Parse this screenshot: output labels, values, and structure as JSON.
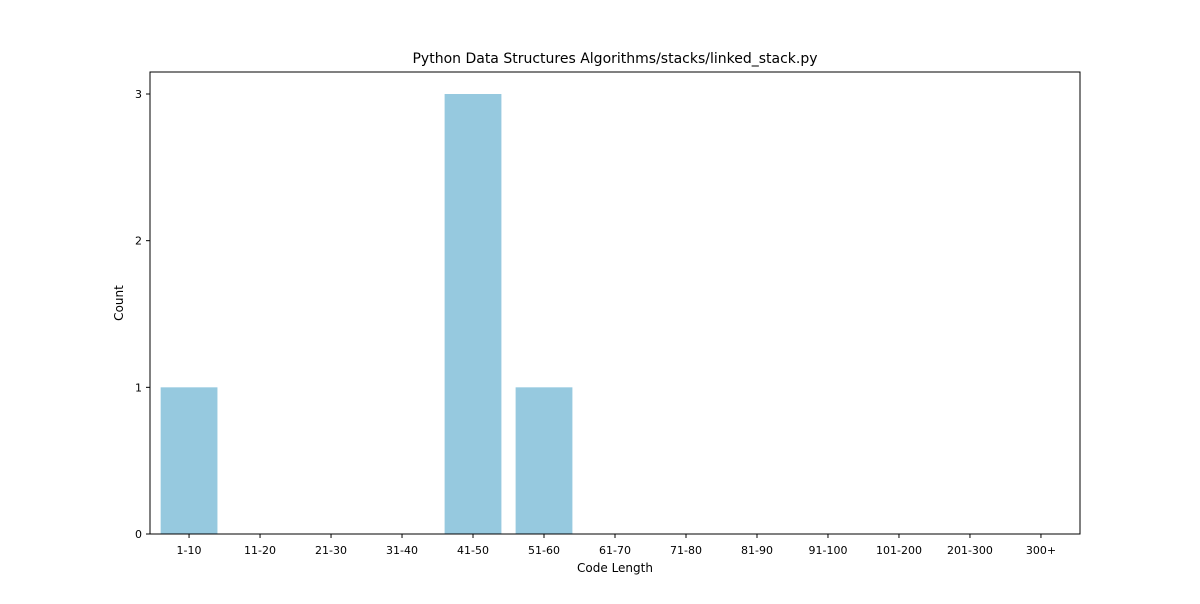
{
  "chart_data": {
    "type": "bar",
    "title": "Python Data Structures Algorithms/stacks/linked_stack.py",
    "xlabel": "Code Length",
    "ylabel": "Count",
    "categories": [
      "1-10",
      "11-20",
      "21-30",
      "31-40",
      "41-50",
      "51-60",
      "61-70",
      "71-80",
      "81-90",
      "91-100",
      "101-200",
      "201-300",
      "300+"
    ],
    "values": [
      1,
      0,
      0,
      0,
      3,
      1,
      0,
      0,
      0,
      0,
      0,
      0,
      0
    ],
    "ylim": [
      0,
      3.15
    ],
    "yticks": [
      0,
      1,
      2,
      3
    ],
    "grid": false,
    "colors": {
      "bar": "#96c9df",
      "axis": "#000000"
    }
  }
}
